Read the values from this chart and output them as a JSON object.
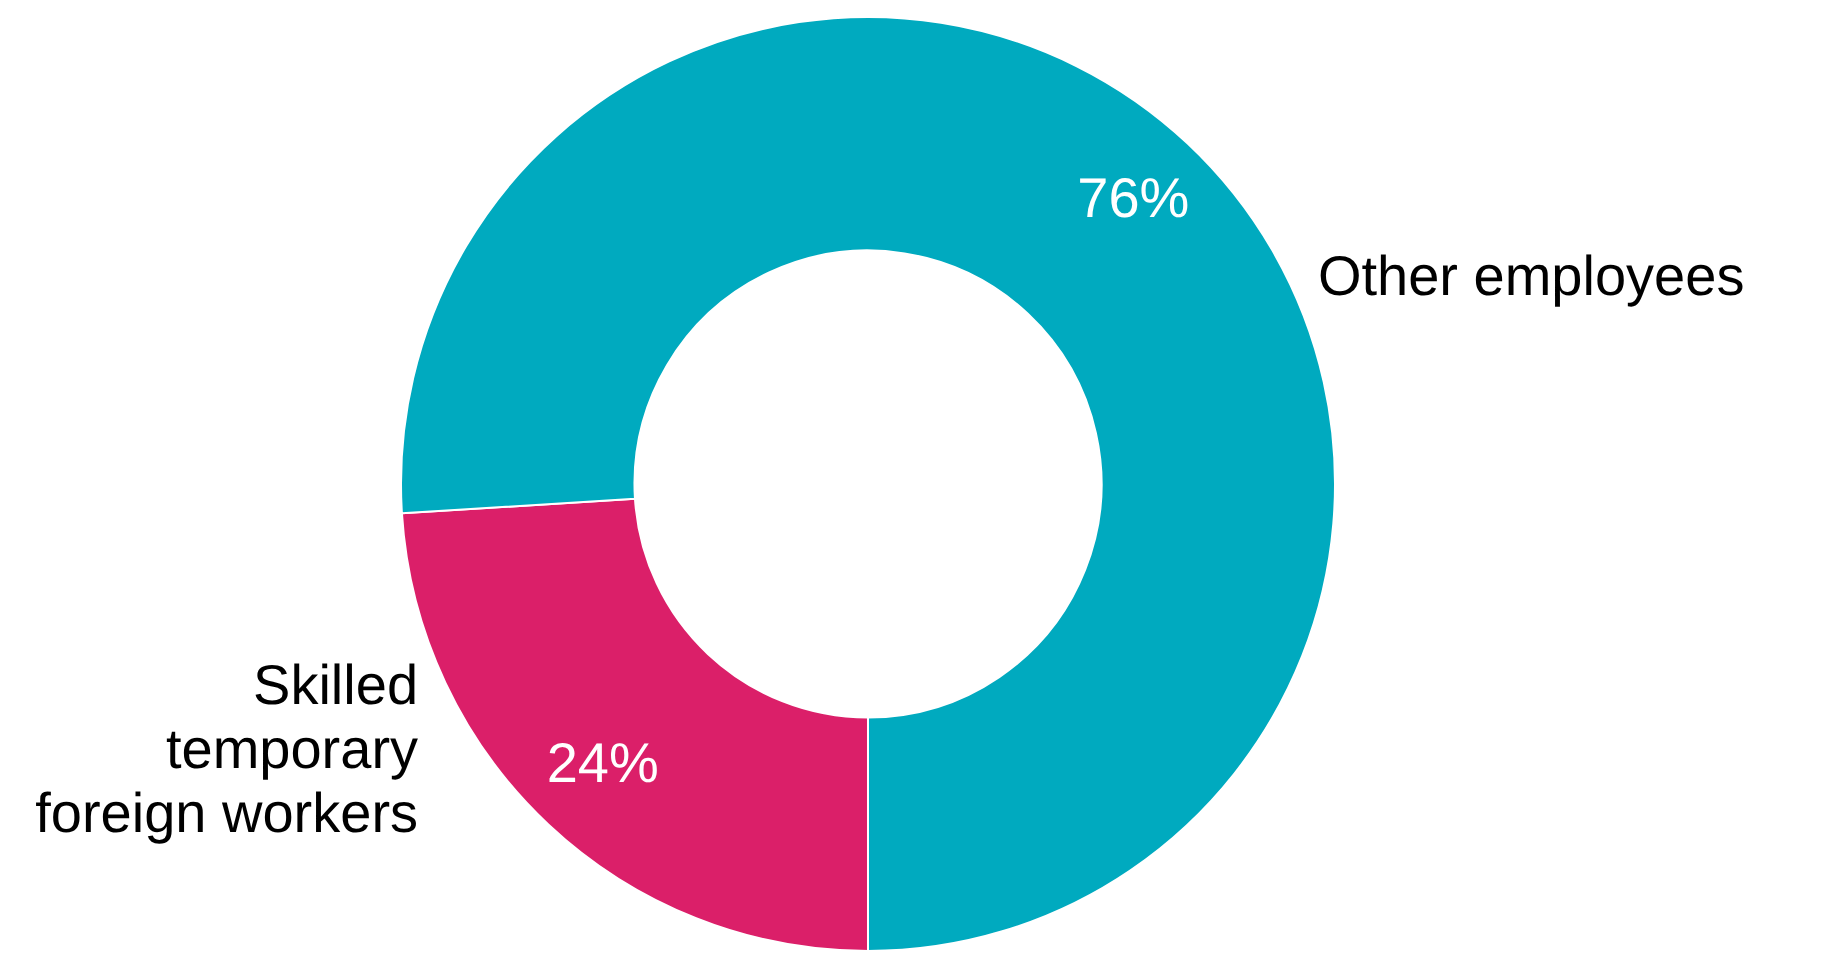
{
  "chart_data": {
    "type": "donut",
    "categories": [
      "Skilled temporary foreign workers",
      "Other employees"
    ],
    "values": [
      24,
      76
    ],
    "colors": [
      "#db1f69",
      "#00aabf"
    ],
    "value_labels": [
      "24%",
      "76%"
    ],
    "legend": false
  }
}
